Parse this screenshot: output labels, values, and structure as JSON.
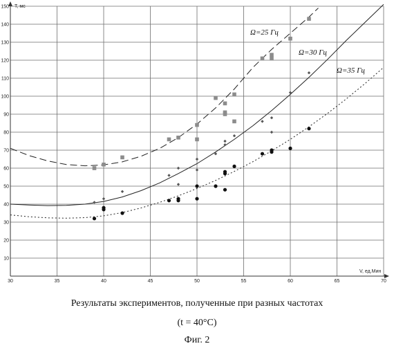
{
  "chart_data": {
    "type": "scatter",
    "xlabel": "V, ед.Мин",
    "ylabel": "T, мс",
    "xlim": [
      30,
      70
    ],
    "ylim": [
      0,
      150
    ],
    "xticks": [
      "30",
      "35",
      "40",
      "45",
      "50",
      "55",
      "60",
      "65",
      "70"
    ],
    "yticks": [
      "0",
      "10",
      "20",
      "30",
      "40",
      "50",
      "60",
      "70",
      "80",
      "90",
      "100",
      "110",
      "120",
      "130",
      "140",
      "150"
    ],
    "grid": true,
    "series": [
      {
        "name": "Ω=25 Гц",
        "color": "#8c8c8c",
        "marker": "square",
        "line_style": "dashed",
        "x": [
          39,
          40,
          42,
          47,
          48,
          50,
          50,
          52,
          53,
          53,
          53,
          54,
          54,
          57,
          58,
          58,
          60,
          62
        ],
        "y": [
          60,
          62,
          66,
          76,
          77,
          84,
          76,
          99,
          96,
          90,
          91,
          101,
          86,
          121,
          123,
          121,
          132,
          143
        ]
      },
      {
        "name": "Ω=30 Гц",
        "color": "#555555",
        "marker": "small-diamond",
        "line_style": "solid",
        "x": [
          39,
          40,
          42,
          47,
          48,
          48,
          50,
          50,
          52,
          53,
          53,
          54,
          57,
          58,
          58,
          60,
          62
        ],
        "y": [
          41,
          43,
          47,
          56,
          60,
          51,
          65,
          59,
          68,
          75,
          73,
          78,
          86,
          88,
          80,
          102,
          113
        ]
      },
      {
        "name": "Ω=35 Гц",
        "color": "#111111",
        "marker": "dot",
        "line_style": "dotted",
        "x": [
          39,
          40,
          40,
          42,
          47,
          48,
          48,
          50,
          50,
          52,
          53,
          53,
          53,
          54,
          57,
          58,
          58,
          60,
          62
        ],
        "y": [
          32,
          37,
          38,
          35,
          42,
          43,
          42,
          50,
          43,
          50,
          57,
          58,
          48,
          61,
          68,
          69,
          70,
          71,
          82
        ]
      }
    ],
    "curves": [
      {
        "label": "Ω=25 Гц",
        "style": "dashed",
        "x": [
          30,
          32,
          34,
          36,
          38,
          40,
          42,
          44,
          46,
          48,
          50,
          52,
          54,
          56,
          58,
          60,
          62,
          63
        ],
        "y": [
          71,
          67,
          64,
          62,
          61.3,
          61.8,
          63.5,
          66.6,
          71,
          77,
          84.5,
          93.5,
          104,
          116,
          126,
          135,
          144,
          149
        ]
      },
      {
        "label": "Ω=30 Гц",
        "style": "solid",
        "x": [
          30,
          32,
          34,
          36,
          38,
          40,
          42,
          44,
          46,
          48,
          50,
          52,
          54,
          56,
          58,
          60,
          62,
          64,
          66,
          68,
          70
        ],
        "y": [
          40,
          39.5,
          39.2,
          39.3,
          40,
          41.5,
          44,
          47.5,
          51.8,
          57,
          62.5,
          69,
          76,
          83.6,
          92,
          101,
          110.5,
          120.5,
          131,
          141,
          151
        ]
      },
      {
        "label": "Ω=35 Гц",
        "style": "dotted",
        "x": [
          30,
          32,
          34,
          36,
          38,
          40,
          42,
          44,
          46,
          48,
          50,
          52,
          54,
          56,
          58,
          60,
          62,
          64,
          66,
          68,
          70
        ],
        "y": [
          34,
          33,
          32.4,
          32.2,
          32.5,
          33.5,
          35.3,
          37.9,
          41,
          44.6,
          48.7,
          53.2,
          58.2,
          63.6,
          69.6,
          76,
          83,
          90.5,
          98.5,
          107,
          116
        ]
      }
    ],
    "curve_labels": [
      "Ω=25 Гц",
      "Ω=30 Гц",
      "Ω=35 Гц"
    ]
  },
  "caption": {
    "line1": "Результаты экспериментов, полученные при разных частотах",
    "line2": "(t = 40°C)",
    "line3": "Фиг. 2"
  }
}
